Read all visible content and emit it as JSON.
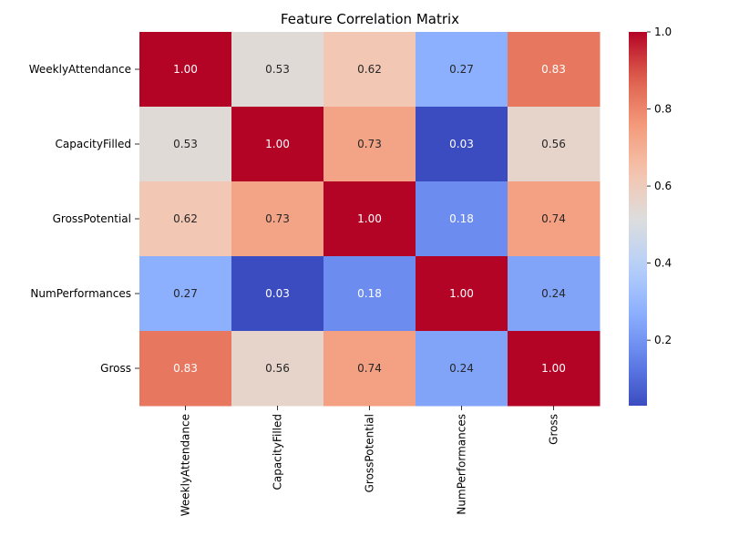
{
  "chart_data": {
    "type": "heatmap",
    "title": "Feature Correlation Matrix",
    "rows": [
      "WeeklyAttendance",
      "CapacityFilled",
      "GrossPotential",
      "NumPerformances",
      "Gross"
    ],
    "columns": [
      "WeeklyAttendance",
      "CapacityFilled",
      "GrossPotential",
      "NumPerformances",
      "Gross"
    ],
    "values": [
      [
        1.0,
        0.53,
        0.62,
        0.27,
        0.83
      ],
      [
        0.53,
        1.0,
        0.73,
        0.03,
        0.56
      ],
      [
        0.62,
        0.73,
        1.0,
        0.18,
        0.74
      ],
      [
        0.27,
        0.03,
        0.18,
        1.0,
        0.24
      ],
      [
        0.83,
        0.56,
        0.74,
        0.24,
        1.0
      ]
    ],
    "value_format": "2 decimals",
    "colormap": "coolwarm",
    "vmin": 0.03,
    "vmax": 1.0,
    "colorbar": {
      "ticks": [
        0.2,
        0.4,
        0.6,
        0.8,
        1.0
      ],
      "tick_labels": [
        "0.2",
        "0.4",
        "0.6",
        "0.8",
        "1.0"
      ],
      "position": "right"
    },
    "grid": false
  }
}
